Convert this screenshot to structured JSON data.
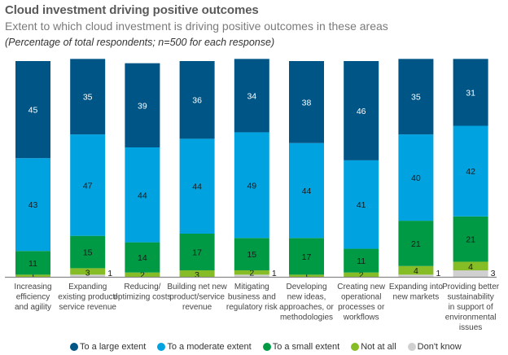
{
  "header": {
    "title": "Cloud investment driving positive outcomes",
    "subtitle": "Extent to which cloud investment is driving positive outcomes in these areas",
    "note": "(Percentage of total respondents; n=500 for each response)"
  },
  "chart_data": {
    "type": "bar",
    "stacked": true,
    "title": "Cloud investment driving positive outcomes",
    "subtitle": "Extent to which cloud investment is driving positive outcomes in these areas",
    "xlabel": "",
    "ylabel": "Percentage of total respondents",
    "ylim": [
      0,
      100
    ],
    "grid": false,
    "legend_position": "bottom",
    "categories": [
      [
        "Increasing",
        "efficiency",
        "and agility"
      ],
      [
        "Expanding",
        "existing product/",
        "service revenue"
      ],
      [
        "Reducing/",
        "optimizing costs"
      ],
      [
        "Building net new",
        "product/service",
        "revenue"
      ],
      [
        "Mitigating",
        "business and",
        "regulatory risk"
      ],
      [
        "Developing",
        "new ideas,",
        "approaches, or",
        "methodologies"
      ],
      [
        "Creating new",
        "operational",
        "processes or",
        "workflows"
      ],
      [
        "Expanding into",
        "new markets"
      ],
      [
        "Providing better",
        "sustainability",
        "in support of",
        "environmental",
        "issues"
      ]
    ],
    "series": [
      {
        "name": "To a large extent",
        "color": "#005587",
        "label_color": "#ffffff",
        "values": [
          45,
          35,
          39,
          36,
          34,
          38,
          46,
          35,
          31
        ]
      },
      {
        "name": "To a moderate extent",
        "color": "#00A3E0",
        "label_color": "#1a1a1a",
        "values": [
          43,
          47,
          44,
          44,
          49,
          44,
          41,
          40,
          42
        ]
      },
      {
        "name": "To a small extent",
        "color": "#009A44",
        "label_color": "#1a1a1a",
        "values": [
          11,
          15,
          14,
          17,
          15,
          17,
          11,
          21,
          21
        ]
      },
      {
        "name": "Not at all",
        "color": "#86BC25",
        "label_color": "#1a1a1a",
        "values": [
          1,
          3,
          2,
          3,
          2,
          1,
          2,
          4,
          4
        ]
      },
      {
        "name": "Don't know",
        "color": "#D0D0D0",
        "label_color": "#1a1a1a",
        "values": [
          0,
          1,
          0,
          0,
          1,
          0,
          0,
          1,
          3
        ]
      }
    ]
  },
  "legend": [
    {
      "label": "To a large extent",
      "color": "#005587"
    },
    {
      "label": "To a moderate extent",
      "color": "#00A3E0"
    },
    {
      "label": "To a small extent",
      "color": "#009A44"
    },
    {
      "label": "Not at all",
      "color": "#86BC25"
    },
    {
      "label": "Don't know",
      "color": "#D0D0D0"
    }
  ],
  "colors": {
    "axis": "#888888",
    "title": "#5a5a5a"
  }
}
